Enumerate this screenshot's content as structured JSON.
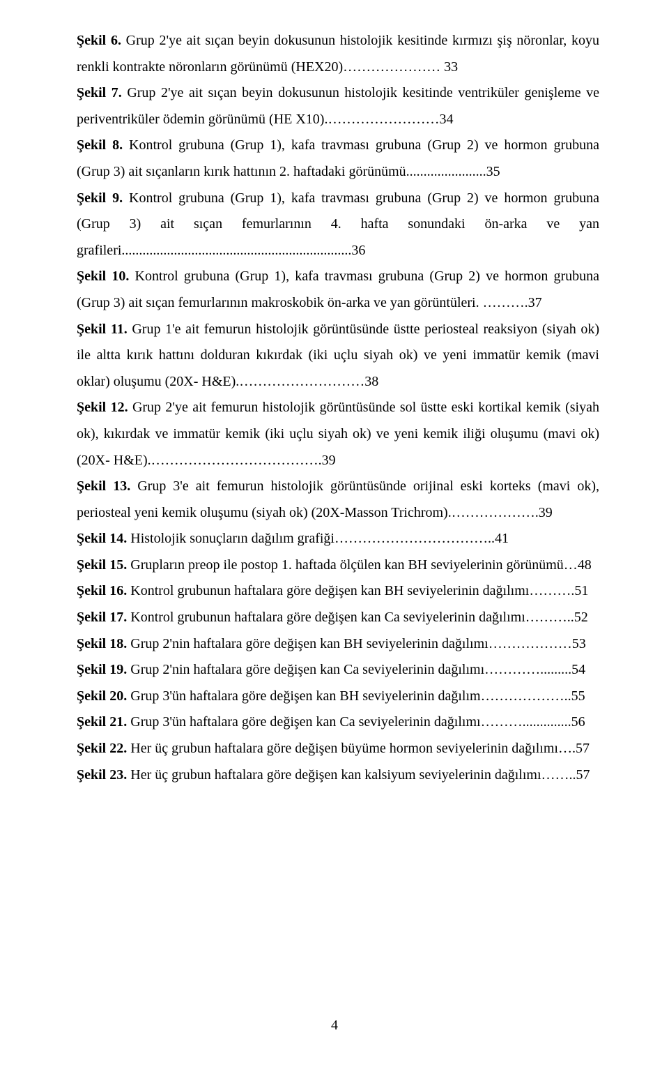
{
  "entries": [
    {
      "label": "Şekil 6.",
      "text": " Grup 2'ye ait sıçan beyin dokusunun histolojik kesitinde kırmızı şiş nöronlar, koyu renkli kontrakte nöronların görünümü (HEX20)…………………  33"
    },
    {
      "label": "Şekil 7.",
      "text": " Grup 2'ye ait sıçan beyin dokusunun histolojik kesitinde ventriküler genişleme ve periventriküler ödemin görünümü (HE X10).……………………34"
    },
    {
      "label": "Şekil 8.",
      "text": " Kontrol grubuna (Grup 1), kafa travması grubuna (Grup 2) ve hormon grubuna (Grup 3) ait sıçanların kırık hattının 2. haftadaki görünümü.......................35"
    },
    {
      "label": "Şekil 9.",
      "text": " Kontrol grubuna (Grup 1), kafa travması grubuna (Grup 2) ve hormon grubuna (Grup 3) ait sıçan femurlarının 4. hafta sonundaki ön-arka ve yan grafileri..................................................................36"
    },
    {
      "label": "Şekil 10.",
      "text": " Kontrol grubuna (Grup 1), kafa travması grubuna (Grup 2) ve hormon grubuna (Grup 3) ait sıçan femurlarının makroskobik ön-arka ve yan görüntüleri. ……….37"
    },
    {
      "label": "Şekil 11.",
      "text": " Grup 1'e ait femurun histolojik görüntüsünde üstte periosteal reaksiyon (siyah ok) ile altta kırık hattını dolduran kıkırdak (iki uçlu siyah ok) ve yeni immatür kemik (mavi oklar) oluşumu (20X- H&E).………………………38"
    },
    {
      "label": "Şekil 12.",
      "text": " Grup 2'ye ait femurun histolojik görüntüsünde sol üstte eski kortikal kemik (siyah ok), kıkırdak ve immatür kemik (iki uçlu siyah ok) ve yeni kemik iliği oluşumu (mavi ok) (20X- H&E).……………………………….39"
    },
    {
      "label": "Şekil 13.",
      "text": " Grup 3'e ait femurun histolojik görüntüsünde orijinal eski korteks (mavi ok), periosteal yeni kemik oluşumu (siyah ok) (20X-Masson Trichrom).……………….39"
    },
    {
      "label": "Şekil 14.",
      "text": " Histolojik sonuçların dağılım grafiği……………………………..41"
    },
    {
      "label": "Şekil 15.",
      "text": " Grupların preop ile postop 1. haftada ölçülen kan BH seviyelerinin görünümü…48"
    },
    {
      "label": "Şekil 16.",
      "text": " Kontrol grubunun haftalara göre değişen kan BH seviyelerinin dağılımı……….51"
    },
    {
      "label": "Şekil 17.",
      "text": " Kontrol grubunun haftalara göre değişen kan Ca seviyelerinin dağılımı………..52"
    },
    {
      "label": "Şekil 18.",
      "text": " Grup 2'nin haftalara göre değişen kan BH seviyelerinin dağılımı………………53"
    },
    {
      "label": "Şekil 19.",
      "text": " Grup 2'nin haftalara göre değişen kan Ca seviyelerinin dağılımı………….........54"
    },
    {
      "label": "Şekil 20.",
      "text": " Grup 3'ün haftalara göre değişen kan BH seviyelerinin dağılım………………..55"
    },
    {
      "label": "Şekil 21.",
      "text": " Grup 3'ün haftalara göre değişen kan Ca seviyelerinin dağılımı………..............56"
    },
    {
      "label": "Şekil 22.",
      "text": " Her üç grubun haftalara göre değişen büyüme hormon seviyelerinin dağılımı….57"
    },
    {
      "label": "Şekil 23.",
      "text": " Her üç grubun haftalara göre değişen kan kalsiyum seviyelerinin dağılımı……..57"
    }
  ],
  "page_number": "4"
}
